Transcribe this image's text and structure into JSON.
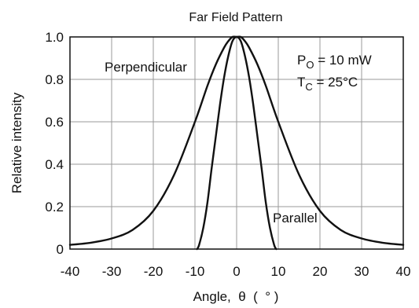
{
  "chart_data": {
    "type": "line",
    "title": "Far Field Pattern",
    "xlabel": "Angle,  θ  (  ° )",
    "ylabel": "Relative intensity",
    "xlim": [
      -40,
      40
    ],
    "ylim": [
      0,
      1.0
    ],
    "x_ticks": [
      -40,
      -30,
      -20,
      -10,
      0,
      10,
      20,
      30,
      40
    ],
    "y_ticks": [
      0,
      0.2,
      0.4,
      0.6,
      0.8,
      1.0
    ],
    "x_tick_labels": [
      "-40",
      "-30",
      "-20",
      "-10",
      "0",
      "10",
      "20",
      "30",
      "40"
    ],
    "y_tick_labels": [
      "0",
      "0.2",
      "0.4",
      "0.6",
      "0.8",
      "1.0"
    ],
    "grid": true,
    "series": [
      {
        "name": "Perpendicular",
        "x": [
          -40,
          -35,
          -30,
          -25,
          -20,
          -15,
          -10,
          -7,
          -5,
          -3,
          -2,
          -1,
          0,
          1,
          2,
          3,
          5,
          7,
          10,
          15,
          20,
          25,
          30,
          35,
          40
        ],
        "y": [
          0.02,
          0.03,
          0.05,
          0.09,
          0.18,
          0.35,
          0.6,
          0.77,
          0.87,
          0.95,
          0.98,
          1.0,
          1.0,
          1.0,
          0.98,
          0.95,
          0.87,
          0.77,
          0.6,
          0.35,
          0.18,
          0.09,
          0.05,
          0.03,
          0.02
        ]
      },
      {
        "name": "Parallel",
        "x": [
          -9.5,
          -9,
          -8,
          -7,
          -6,
          -5,
          -4,
          -3,
          -2,
          -1,
          0,
          1,
          2,
          3,
          4,
          5,
          6,
          7,
          8,
          9,
          9.5
        ],
        "y": [
          0.0,
          0.02,
          0.1,
          0.22,
          0.38,
          0.53,
          0.68,
          0.81,
          0.91,
          0.98,
          1.0,
          0.98,
          0.91,
          0.81,
          0.68,
          0.53,
          0.38,
          0.22,
          0.1,
          0.02,
          0.0
        ]
      }
    ],
    "annotations": [
      {
        "text": "Perpendicular",
        "points_to": "Perpendicular",
        "at": [
          -18,
          0.86
        ]
      },
      {
        "text": "Parallel",
        "points_to": "Parallel",
        "at": [
          12,
          0.16
        ]
      }
    ],
    "conditions": {
      "po_main": "P",
      "po_sub": "O",
      "po_rest": " = 10 mW",
      "tc_main": "T",
      "tc_sub": "C",
      "tc_rest": " = 25°C"
    },
    "colors": {
      "line": "#111111",
      "grid": "#9a9a9a",
      "frame": "#111111"
    }
  }
}
